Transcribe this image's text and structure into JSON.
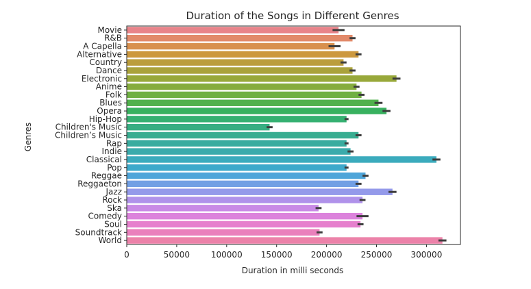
{
  "chart_data": {
    "type": "bar",
    "orientation": "horizontal",
    "title": "Duration of the Songs in Different Genres",
    "xlabel": "Duration in milli seconds",
    "ylabel": "Genres",
    "xlim": [
      0,
      334000
    ],
    "xticks": [
      0,
      50000,
      100000,
      150000,
      200000,
      250000,
      300000
    ],
    "grid": false,
    "error_bars": true,
    "categories": [
      "Movie",
      "R&B",
      "A Capella",
      "Alternative",
      "Country",
      "Dance",
      "Electronic",
      "Anime",
      "Folk",
      "Blues",
      "Opera",
      "Hip-Hop",
      "Children's Music",
      "Children’s Music",
      "Rap",
      "Indie",
      "Classical",
      "Pop",
      "Reggae",
      "Reggaeton",
      "Jazz",
      "Rock",
      "Ska",
      "Comedy",
      "Soul",
      "Soundtrack",
      "World"
    ],
    "values": [
      212000,
      226000,
      208000,
      232000,
      217000,
      226000,
      270000,
      230000,
      235000,
      252000,
      260000,
      220000,
      143000,
      232000,
      220000,
      224000,
      310000,
      220000,
      239000,
      232000,
      266000,
      236000,
      192000,
      236000,
      234000,
      193000,
      316000
    ],
    "error_low": [
      206000,
      223000,
      202000,
      229000,
      214000,
      223000,
      266000,
      227000,
      232000,
      248000,
      256000,
      218000,
      140000,
      229000,
      218000,
      221000,
      306000,
      218000,
      236000,
      229000,
      262000,
      233000,
      189000,
      230000,
      231000,
      190000,
      312000
    ],
    "error_high": [
      218000,
      229000,
      214000,
      235000,
      220000,
      229000,
      274000,
      233000,
      238000,
      256000,
      264000,
      222000,
      146000,
      235000,
      222000,
      227000,
      314000,
      222000,
      242000,
      235000,
      270000,
      239000,
      195000,
      242000,
      237000,
      196000,
      320000
    ],
    "colors": [
      "#e8848a",
      "#e28a6a",
      "#d8904e",
      "#cc983e",
      "#bb9d3c",
      "#aaa23b",
      "#98a83a",
      "#86ac3d",
      "#6fb042",
      "#50b14c",
      "#38b15f",
      "#35b071",
      "#37ae82",
      "#38ad91",
      "#39ac9f",
      "#3aabac",
      "#3babbd",
      "#3da9cb",
      "#4ea5d9",
      "#719fe4",
      "#949aea",
      "#b092ea",
      "#c98ae6",
      "#dc83dc",
      "#e680cd",
      "#ea80bc",
      "#ec82a9"
    ]
  }
}
